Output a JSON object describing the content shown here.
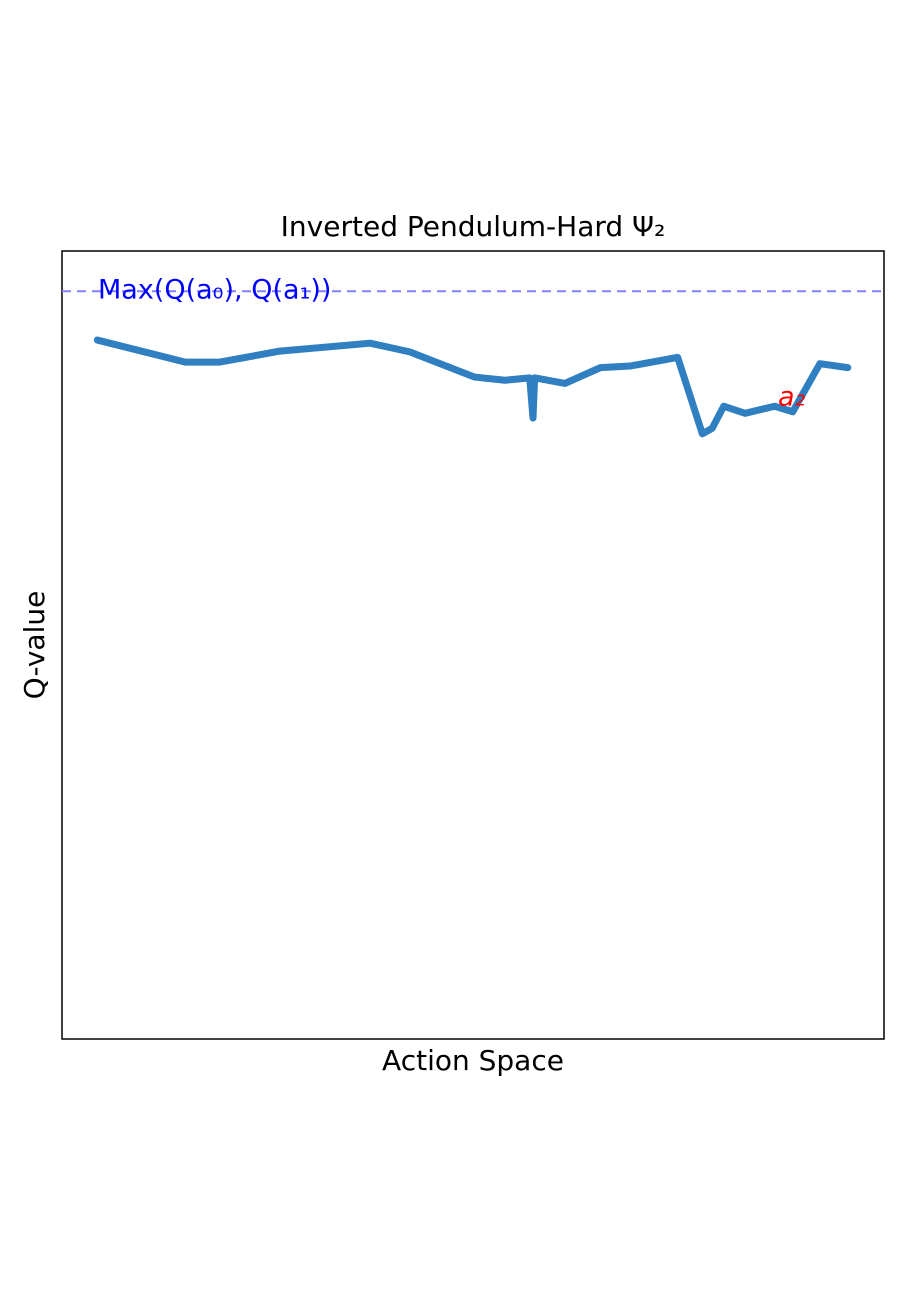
{
  "chart_data": {
    "type": "line",
    "title": "Inverted Pendulum-Hard Ψ₂",
    "xlabel": "Action Space",
    "ylabel": "Q-value",
    "xlim": [
      0,
      1
    ],
    "ylim": [
      0,
      1
    ],
    "x": [
      0.043,
      0.15,
      0.192,
      0.265,
      0.375,
      0.423,
      0.502,
      0.539,
      0.569,
      0.573,
      0.575,
      0.612,
      0.655,
      0.691,
      0.749,
      0.779,
      0.791,
      0.805,
      0.831,
      0.867,
      0.889,
      0.922,
      0.956
    ],
    "series": [
      {
        "color": "#2f7fc1",
        "values": [
          0.887,
          0.859,
          0.859,
          0.873,
          0.883,
          0.872,
          0.84,
          0.836,
          0.839,
          0.788,
          0.839,
          0.832,
          0.852,
          0.854,
          0.865,
          0.768,
          0.775,
          0.803,
          0.794,
          0.803,
          0.796,
          0.857,
          0.852
        ]
      }
    ],
    "hline": {
      "value": 0.949,
      "color": "#8080ff",
      "label": "Max(Q(a₀), Q(a₁))",
      "label_color": "#0000ff"
    },
    "annotations": [
      {
        "text": "a₂",
        "color": "#ff0000"
      }
    ]
  }
}
